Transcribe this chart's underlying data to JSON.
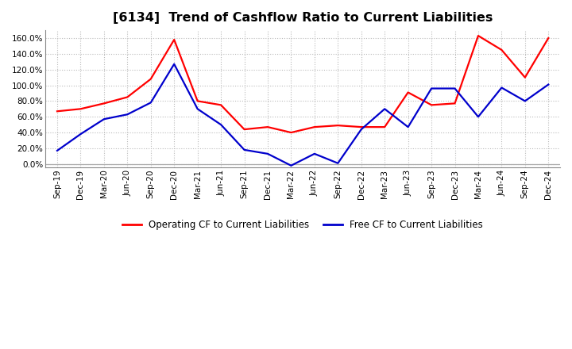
{
  "title": "[6134]  Trend of Cashflow Ratio to Current Liabilities",
  "x_labels": [
    "Sep-19",
    "Dec-19",
    "Mar-20",
    "Jun-20",
    "Sep-20",
    "Dec-20",
    "Mar-21",
    "Jun-21",
    "Sep-21",
    "Dec-21",
    "Mar-22",
    "Jun-22",
    "Sep-22",
    "Dec-22",
    "Mar-23",
    "Jun-23",
    "Sep-23",
    "Dec-23",
    "Mar-24",
    "Jun-24",
    "Sep-24",
    "Dec-24"
  ],
  "operating_cf": [
    0.67,
    0.7,
    0.77,
    0.85,
    1.08,
    1.58,
    0.8,
    0.75,
    0.44,
    0.47,
    0.4,
    0.47,
    0.49,
    0.47,
    0.47,
    0.91,
    0.75,
    0.77,
    1.63,
    1.45,
    1.1,
    1.6
  ],
  "free_cf": [
    0.17,
    0.38,
    0.57,
    0.63,
    0.78,
    1.27,
    0.7,
    0.5,
    0.18,
    0.13,
    -0.02,
    0.13,
    0.01,
    0.44,
    0.7,
    0.47,
    0.96,
    0.96,
    0.6,
    0.97,
    0.8,
    1.01
  ],
  "operating_color": "#ff0000",
  "free_color": "#0000cc",
  "ylim_min": -0.04,
  "ylim_max": 1.7,
  "yticks": [
    0.0,
    0.2,
    0.4,
    0.6,
    0.8,
    1.0,
    1.2,
    1.4,
    1.6
  ],
  "legend_operating": "Operating CF to Current Liabilities",
  "legend_free": "Free CF to Current Liabilities",
  "bg_color": "#ffffff",
  "plot_bg_color": "#ffffff",
  "grid_color": "#bbbbbb",
  "title_fontsize": 11.5,
  "label_fontsize": 7.5,
  "legend_fontsize": 8.5
}
